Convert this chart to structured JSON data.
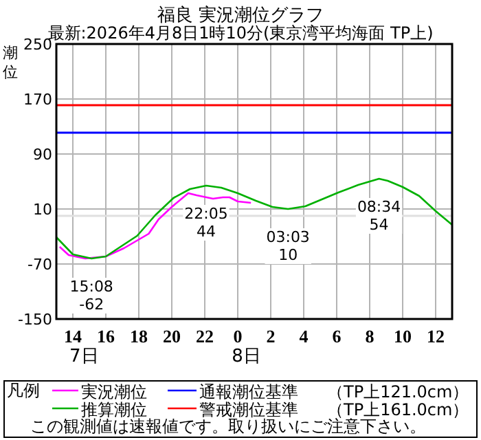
{
  "chart_data": {
    "type": "line",
    "title": "福良 実況潮位グラフ",
    "subtitle": "最新:2026年4月8日1時10分(東京湾平均海面 TP上)",
    "ylabel": "潮位",
    "legend_title": "凡例",
    "xlim": [
      "2026-04-07T13:00",
      "2026-04-08T13:00"
    ],
    "ylim": [
      -150,
      250
    ],
    "xticks": [
      {
        "value": "2026-04-07T14:00",
        "label": "14"
      },
      {
        "value": "2026-04-07T16:00",
        "label": "16"
      },
      {
        "value": "2026-04-07T18:00",
        "label": "18"
      },
      {
        "value": "2026-04-07T20:00",
        "label": "20"
      },
      {
        "value": "2026-04-07T22:00",
        "label": "22"
      },
      {
        "value": "2026-04-08T00:00",
        "label": "0"
      },
      {
        "value": "2026-04-08T02:00",
        "label": "2"
      },
      {
        "value": "2026-04-08T04:00",
        "label": "4"
      },
      {
        "value": "2026-04-08T06:00",
        "label": "6"
      },
      {
        "value": "2026-04-08T08:00",
        "label": "8"
      },
      {
        "value": "2026-04-08T10:00",
        "label": "10"
      },
      {
        "value": "2026-04-08T12:00",
        "label": "12"
      }
    ],
    "yticks": [
      -150,
      -70,
      10,
      90,
      170,
      250
    ],
    "grid": true,
    "legend": "bottom",
    "marker": "none",
    "line_style": "solid",
    "series": [
      {
        "name": "実況潮位",
        "color": "#ff00ff",
        "x": [
          "2026-04-07T13:12",
          "2026-04-07T13:45",
          "2026-04-07T14:45",
          "2026-04-07T16:00",
          "2026-04-07T17:06",
          "2026-04-07T18:36",
          "2026-04-07T19:12",
          "2026-04-07T20:00",
          "2026-04-07T21:00",
          "2026-04-07T21:30",
          "2026-04-07T22:30",
          "2026-04-07T23:06",
          "2026-04-07T23:30",
          "2026-04-08T00:00",
          "2026-04-08T00:48"
        ],
        "values": [
          -45,
          -57,
          -62,
          -59,
          -47,
          -26,
          -5,
          13,
          33,
          30,
          25,
          27,
          27,
          21,
          19
        ]
      },
      {
        "name": "推算潮位",
        "color": "#00b000",
        "x": [
          "2026-04-07T13:00",
          "2026-04-07T14:00",
          "2026-04-07T15:08",
          "2026-04-07T16:00",
          "2026-04-07T17:54",
          "2026-04-07T19:00",
          "2026-04-07T20:06",
          "2026-04-07T21:06",
          "2026-04-07T22:05",
          "2026-04-07T23:00",
          "2026-04-08T00:00",
          "2026-04-08T01:06",
          "2026-04-08T02:06",
          "2026-04-08T03:03",
          "2026-04-08T04:06",
          "2026-04-08T05:00",
          "2026-04-08T06:06",
          "2026-04-08T07:18",
          "2026-04-08T08:34",
          "2026-04-08T09:06",
          "2026-04-08T10:00",
          "2026-04-08T11:00",
          "2026-04-08T12:00",
          "2026-04-08T13:00"
        ],
        "values": [
          -31,
          -56,
          -62,
          -59,
          -29,
          1,
          26,
          39,
          44,
          41,
          33,
          22,
          13,
          10,
          14,
          23,
          34,
          45,
          54,
          51,
          42,
          29,
          7,
          -13
        ]
      }
    ],
    "ref_lines": [
      {
        "axis": "y",
        "value": 121,
        "label": "通報潮位基準",
        "color": "#0000ff"
      },
      {
        "axis": "y",
        "value": 161,
        "label": "警戒潮位基準",
        "color": "#ff0000"
      },
      {
        "axis": "y",
        "value": 0,
        "color": "#e0e0e0"
      }
    ],
    "annotations": [
      {
        "text": "15:08\n-62",
        "x": "2026-04-07T15:08",
        "y": -62
      },
      {
        "text": "22:05\n44",
        "x": "2026-04-07T22:05",
        "y": 44
      },
      {
        "text": "03:03\n10",
        "x": "2026-04-08T03:03",
        "y": 10
      },
      {
        "text": "08:34\n54",
        "x": "2026-04-08T08:34",
        "y": 54
      },
      "7日",
      "8日",
      "（TP上121.0cm）",
      "（TP上161.0cm）",
      "この観測値は速報値です。取り扱いにご注意下さい。"
    ]
  }
}
